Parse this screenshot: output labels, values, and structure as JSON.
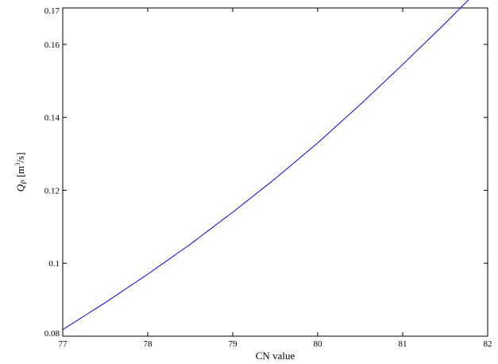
{
  "chart_data": {
    "type": "line",
    "title": "",
    "xlabel": "CN value",
    "ylabel": {
      "symbol": "Q",
      "subscript": "P",
      "unit_open": " [m",
      "unit_sup": "3",
      "unit_close": "/s]"
    },
    "xlim": [
      77,
      82
    ],
    "ylim": [
      0.08,
      0.17
    ],
    "xticks": [
      "77",
      "78",
      "79",
      "80",
      "81",
      "82"
    ],
    "yticks": [
      "0.08",
      "0.1",
      "0.12",
      "0.14",
      "0.16",
      "0.17"
    ],
    "grid": false,
    "legend": "none",
    "series": [
      {
        "color": "#0000ff",
        "x": [
          77,
          77.5,
          78,
          78.5,
          79,
          79.5,
          80,
          80.5,
          81,
          81.5,
          82
        ],
        "y": [
          0.0818,
          0.0892,
          0.097,
          0.1052,
          0.114,
          0.1232,
          0.133,
          0.1435,
          0.1545,
          0.1658,
          0.1775
        ]
      }
    ]
  }
}
